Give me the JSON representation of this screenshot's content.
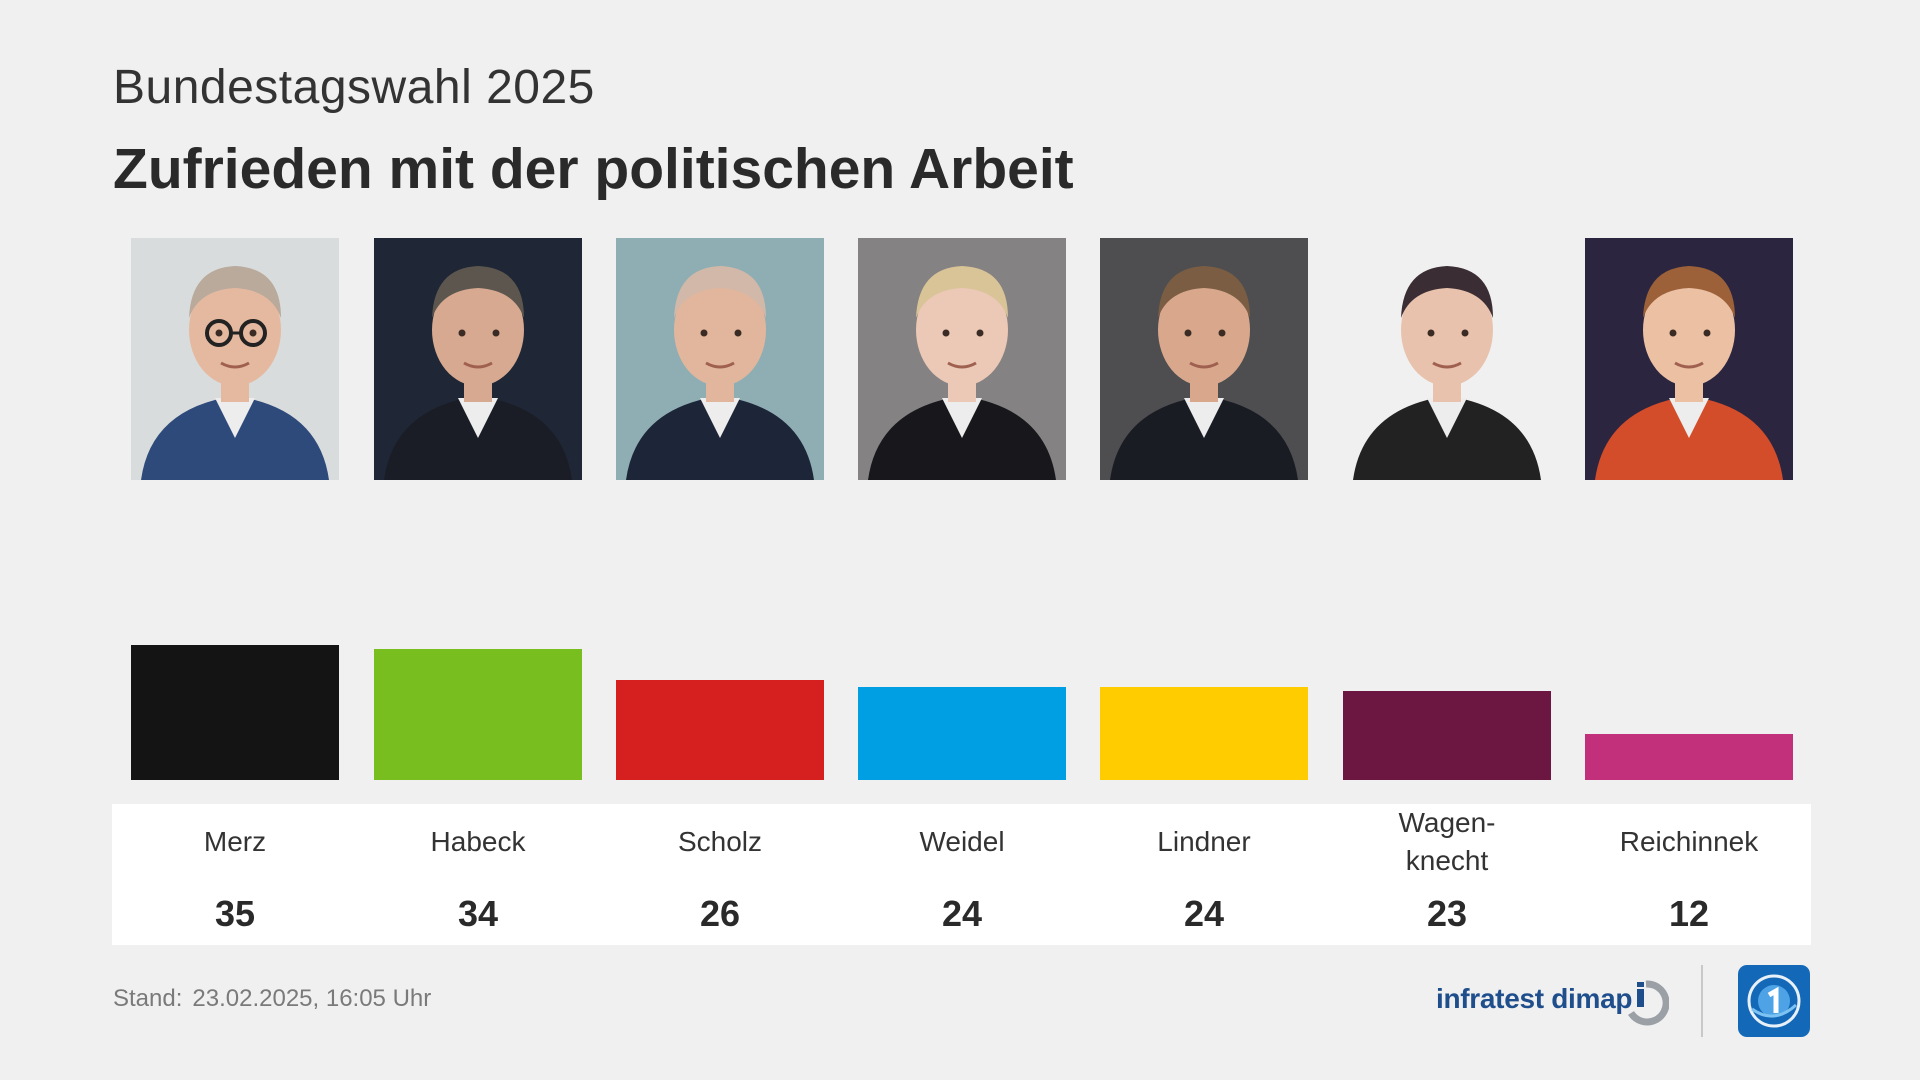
{
  "header": {
    "subtitle": "Bundestagswahl 2025",
    "title": "Zufrieden mit der politischen Arbeit"
  },
  "chart_data": {
    "type": "bar",
    "title": "Zufrieden mit der politischen Arbeit",
    "subtitle": "Bundestagswahl 2025",
    "categories": [
      "Merz",
      "Habeck",
      "Scholz",
      "Weidel",
      "Lindner",
      "Wagen-\nknecht",
      "Reichinnek"
    ],
    "values": [
      35,
      34,
      26,
      24,
      24,
      23,
      12
    ],
    "colors": [
      "#141414",
      "#78be1e",
      "#d62020",
      "#009fe3",
      "#ffcc00",
      "#6b1741",
      "#c2307c"
    ],
    "ylim": [
      0,
      100
    ],
    "xlabel": "",
    "ylabel": ""
  },
  "photos": [
    {
      "name": "merz-photo",
      "bg": "#d9dcdc",
      "suit": "#2e4a7a",
      "hair": "#b9aa9c",
      "skin": "#e5b9a0",
      "glasses": true
    },
    {
      "name": "habeck-photo",
      "bg": "#1f2635",
      "suit": "#1a1d26",
      "hair": "#5c564f",
      "skin": "#d6a990",
      "glasses": false
    },
    {
      "name": "scholz-photo",
      "bg": "#8faeb3",
      "suit": "#1d2538",
      "hair": "#d2b8a8",
      "skin": "#e2b69c",
      "glasses": false
    },
    {
      "name": "weidel-photo",
      "bg": "#858283",
      "suit": "#18181c",
      "hair": "#d8c497",
      "skin": "#ecc8b6",
      "glasses": false
    },
    {
      "name": "lindner-photo",
      "bg": "#4e4e50",
      "suit": "#1a1c24",
      "hair": "#7a5d43",
      "skin": "#d9a88c",
      "glasses": false
    },
    {
      "name": "wagenknecht-photo",
      "bg": "#f0f0f0",
      "suit": "#222222",
      "hair": "#3a2d33",
      "skin": "#e8c2ac",
      "glasses": false
    },
    {
      "name": "reichinnek-photo",
      "bg": "#2c2540",
      "suit": "#d34d2b",
      "hair": "#9c6138",
      "skin": "#ecc0a3",
      "glasses": false
    }
  ],
  "footer": {
    "stand_label": "Stand:",
    "stand_value": "23.02.2025, 16:05 Uhr",
    "brand": "infratest dimap"
  }
}
